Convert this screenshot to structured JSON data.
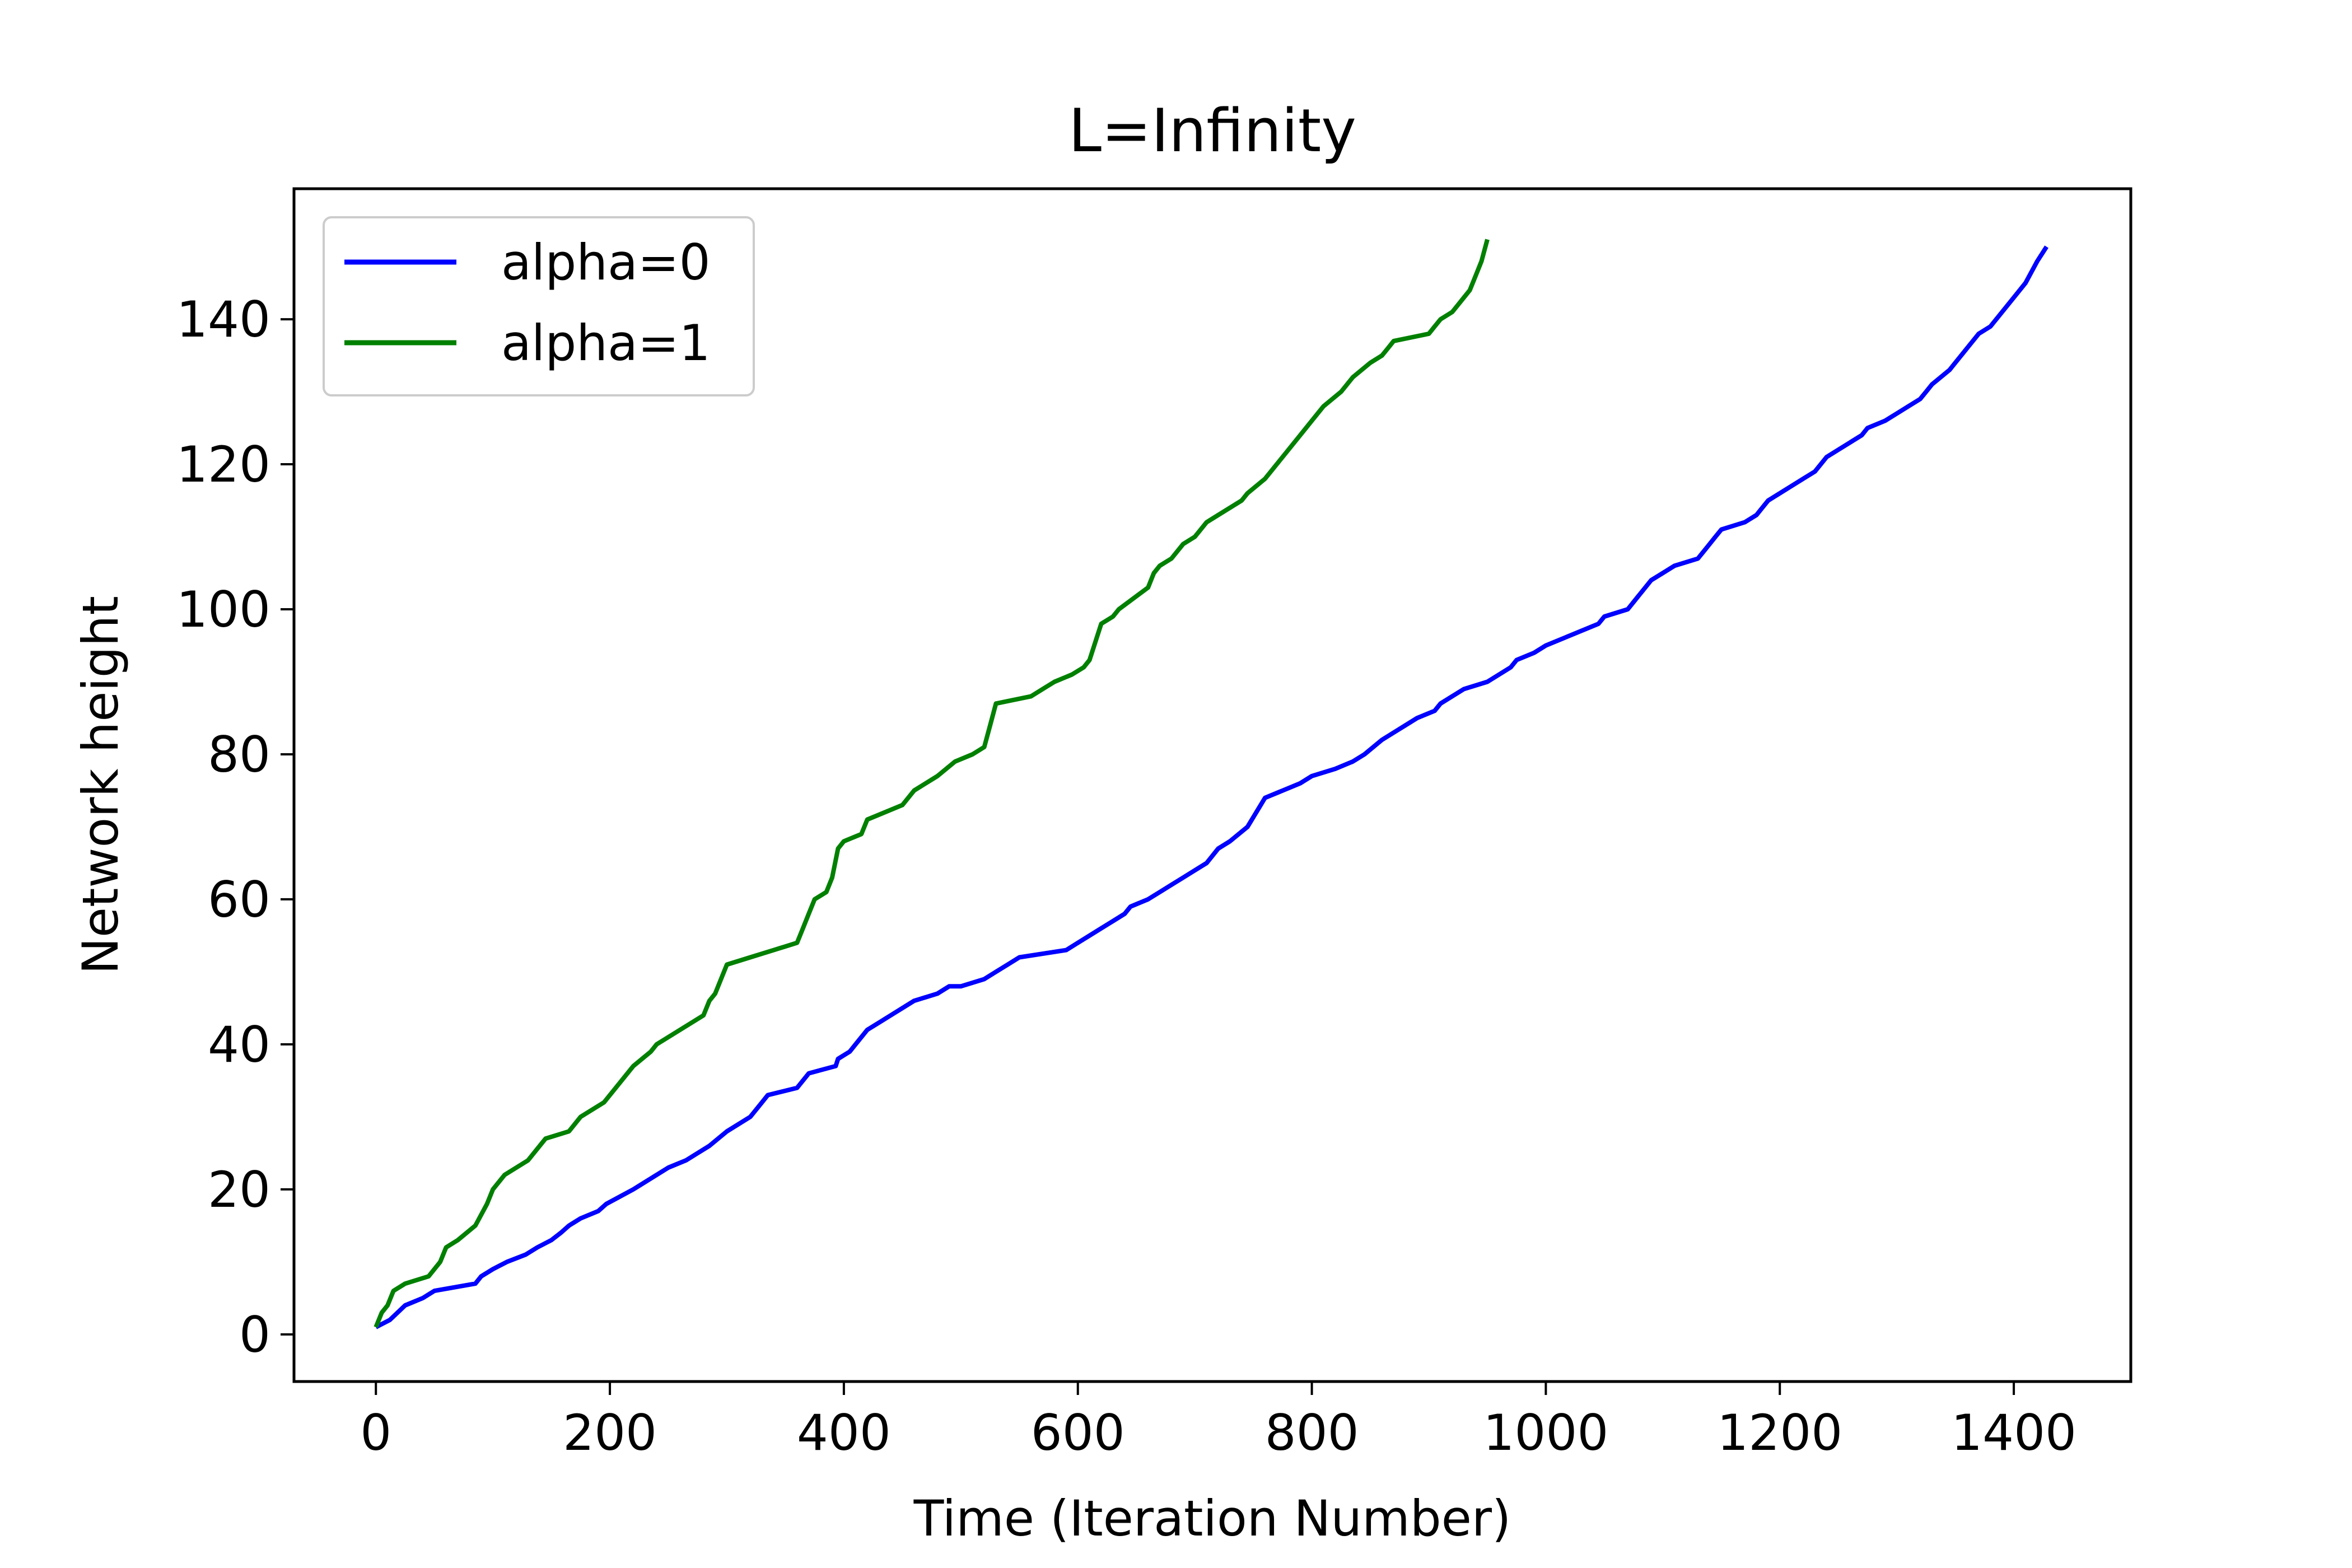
{
  "chart_data": {
    "type": "line",
    "title": "L=Infinity",
    "xlabel": "Time (Iteration Number)",
    "ylabel": "Network height",
    "xlim": [
      -70,
      1500
    ],
    "ylim": [
      -6.5,
      158
    ],
    "xticks": [
      {
        "value": 0,
        "label": "0"
      },
      {
        "value": 200,
        "label": "200"
      },
      {
        "value": 400,
        "label": "400"
      },
      {
        "value": 600,
        "label": "600"
      },
      {
        "value": 800,
        "label": "800"
      },
      {
        "value": 1000,
        "label": "1000"
      },
      {
        "value": 1200,
        "label": "1200"
      },
      {
        "value": 1400,
        "label": "1400"
      }
    ],
    "yticks": [
      {
        "value": 0,
        "label": "0"
      },
      {
        "value": 20,
        "label": "20"
      },
      {
        "value": 40,
        "label": "40"
      },
      {
        "value": 60,
        "label": "60"
      },
      {
        "value": 80,
        "label": "80"
      },
      {
        "value": 100,
        "label": "100"
      },
      {
        "value": 120,
        "label": "120"
      },
      {
        "value": 140,
        "label": "140"
      }
    ],
    "grid": false,
    "legend_position": "top-left",
    "series": [
      {
        "name": "alpha=0",
        "color": "#0000ff",
        "x": [
          0,
          12,
          25,
          40,
          50,
          85,
          90,
          100,
          112,
          128,
          138,
          150,
          158,
          165,
          175,
          190,
          197,
          220,
          250,
          265,
          275,
          285,
          300,
          320,
          330,
          335,
          360,
          365,
          370,
          393,
          395,
          405,
          410,
          420,
          430,
          440,
          460,
          480,
          490,
          500,
          520,
          530,
          540,
          550,
          590,
          600,
          610,
          620,
          630,
          640,
          645,
          660,
          670,
          680,
          690,
          700,
          710,
          720,
          730,
          745,
          760,
          790,
          800,
          820,
          835,
          845,
          860,
          870,
          880,
          890,
          905,
          910,
          930,
          950,
          970,
          975,
          990,
          1000,
          1030,
          1045,
          1050,
          1070,
          1080,
          1090,
          1100,
          1110,
          1130,
          1140,
          1145,
          1150,
          1170,
          1180,
          1185,
          1190,
          1210,
          1220,
          1230,
          1235,
          1240,
          1250,
          1270,
          1275,
          1290,
          1300,
          1310,
          1320,
          1325,
          1330,
          1345,
          1350,
          1360,
          1370,
          1380,
          1390,
          1400,
          1410,
          1420,
          1428
        ],
        "y": [
          1,
          2,
          4,
          5,
          6,
          7,
          8,
          9,
          10,
          11,
          12,
          13,
          14,
          15,
          16,
          17,
          18,
          20,
          23,
          24,
          25,
          26,
          28,
          30,
          32,
          33,
          34,
          35,
          36,
          37,
          38,
          39,
          40,
          42,
          43,
          44,
          46,
          47,
          48,
          48,
          49,
          50,
          51,
          52,
          53,
          54,
          55,
          56,
          57,
          58,
          59,
          60,
          61,
          62,
          63,
          64,
          65,
          67,
          68,
          70,
          74,
          76,
          77,
          78,
          79,
          80,
          82,
          83,
          84,
          85,
          86,
          87,
          89,
          90,
          92,
          93,
          94,
          95,
          97,
          98,
          99,
          100,
          102,
          104,
          105,
          106,
          107,
          109,
          110,
          111,
          112,
          113,
          114,
          115,
          117,
          118,
          119,
          120,
          121,
          122,
          124,
          125,
          126,
          127,
          128,
          129,
          130,
          131,
          133,
          134,
          136,
          138,
          139,
          141,
          143,
          145,
          148,
          150
        ]
      },
      {
        "name": "alpha=1",
        "color": "#008000",
        "x": [
          0,
          5,
          10,
          15,
          25,
          45,
          55,
          60,
          70,
          85,
          95,
          100,
          110,
          130,
          135,
          145,
          165,
          175,
          195,
          200,
          210,
          220,
          235,
          240,
          260,
          280,
          285,
          290,
          300,
          320,
          340,
          360,
          365,
          370,
          375,
          385,
          390,
          395,
          400,
          415,
          420,
          450,
          460,
          480,
          495,
          510,
          520,
          525,
          530,
          560,
          570,
          580,
          595,
          605,
          610,
          620,
          630,
          635,
          660,
          665,
          670,
          680,
          690,
          700,
          710,
          720,
          740,
          745,
          760,
          770,
          790,
          800,
          810,
          825,
          830,
          835,
          850,
          860,
          865,
          870,
          900,
          905,
          910,
          920,
          925,
          930,
          935,
          940,
          945,
          950
        ],
        "y": [
          1,
          3,
          4,
          6,
          7,
          8,
          10,
          12,
          13,
          15,
          18,
          20,
          22,
          24,
          25,
          27,
          28,
          30,
          32,
          33,
          35,
          37,
          39,
          40,
          42,
          44,
          46,
          47,
          51,
          52,
          53,
          54,
          56,
          58,
          60,
          61,
          63,
          67,
          68,
          69,
          71,
          73,
          75,
          77,
          79,
          80,
          81,
          84,
          87,
          88,
          89,
          90,
          91,
          92,
          93,
          98,
          99,
          100,
          103,
          105,
          106,
          107,
          109,
          110,
          112,
          113,
          115,
          116,
          118,
          120,
          124,
          126,
          128,
          130,
          131,
          132,
          134,
          135,
          136,
          137,
          138,
          139,
          140,
          141,
          142,
          143,
          144,
          146,
          148,
          151
        ]
      }
    ]
  }
}
